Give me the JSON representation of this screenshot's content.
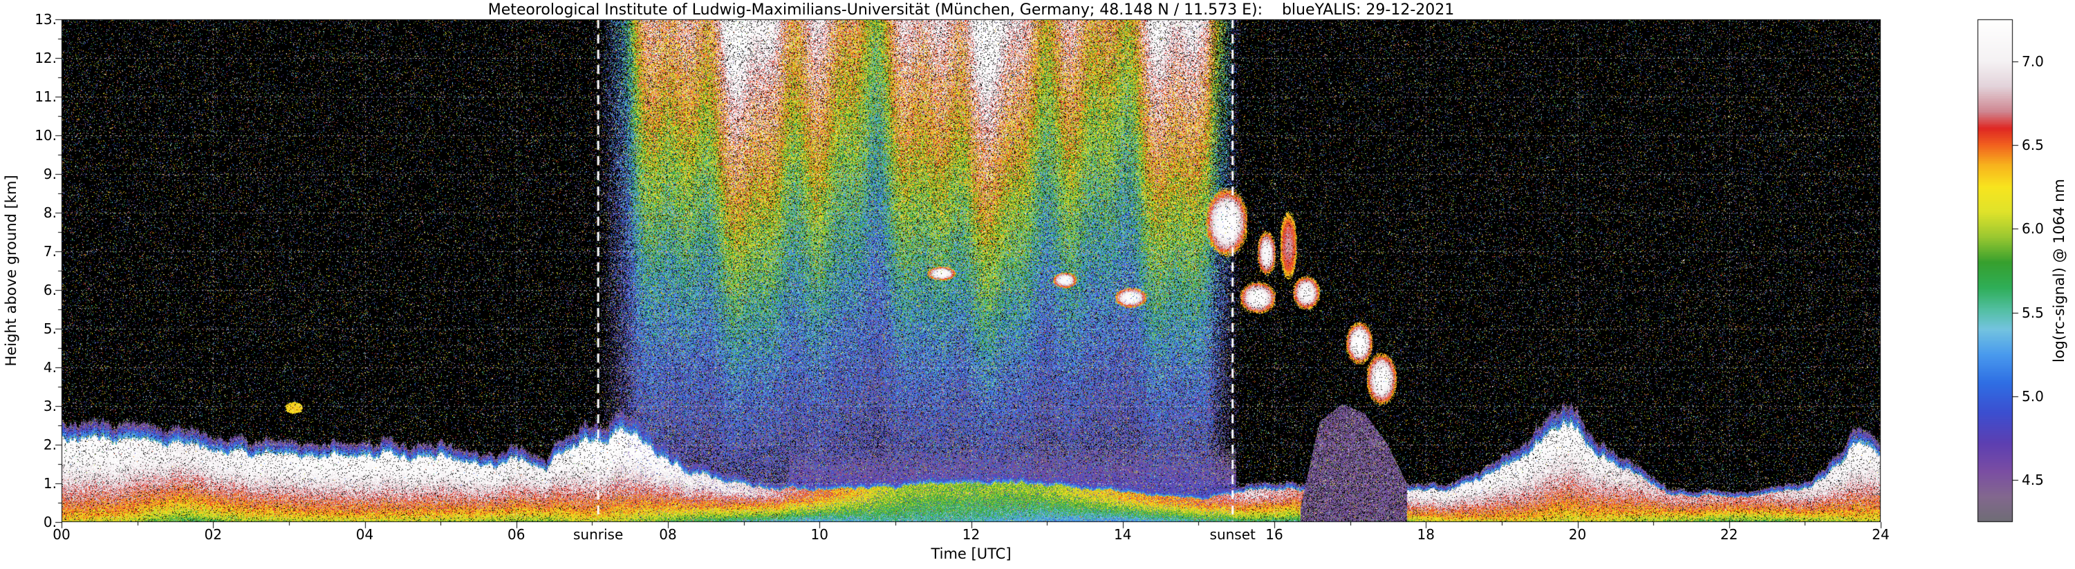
{
  "title": "Meteorological Institute of Ludwig-Maximilians-Universität (München, Germany; 48.148 N / 11.573 E):    blueYALIS: 29-12-2021",
  "axes": {
    "x": {
      "label": "Time [UTC]",
      "ticks": [
        "00",
        "02",
        "04",
        "06",
        "08",
        "10",
        "12",
        "14",
        "16",
        "18",
        "20",
        "22",
        "24"
      ],
      "tick_values": [
        0,
        2,
        4,
        6,
        8,
        10,
        12,
        14,
        16,
        18,
        20,
        22,
        24
      ],
      "minor_step": 1
    },
    "y": {
      "label": "Height above ground [km]",
      "ticks": [
        "0.",
        "1.",
        "2.",
        "3.",
        "4.",
        "5.",
        "6.",
        "7.",
        "8.",
        "9.",
        "10.",
        "11.",
        "12.",
        "13."
      ],
      "tick_values": [
        0,
        1,
        2,
        3,
        4,
        5,
        6,
        7,
        8,
        9,
        10,
        11,
        12,
        13
      ],
      "minor_step": 0.5
    }
  },
  "sun": {
    "sunrise_label": "sunrise",
    "sunset_label": "sunset",
    "sunrise_utc": 7.08,
    "sunset_utc": 15.45
  },
  "colorbar": {
    "label": "log(rc-signal) @ 1064 nm",
    "ticks": [
      "4.5",
      "5.0",
      "5.5",
      "6.0",
      "6.5",
      "7.0"
    ],
    "tick_values": [
      4.5,
      5.0,
      5.5,
      6.0,
      6.5,
      7.0
    ]
  },
  "chart_data": {
    "type": "heatmap",
    "title": "Meteorological Institute of Ludwig-Maximilians-Universität (München, Germany; 48.148 N / 11.573 E):    blueYALIS: 29-12-2021",
    "instrument": "blueYALIS",
    "date": "29-12-2021",
    "xlabel": "Time [UTC]",
    "ylabel": "Height above ground [km]",
    "colorbar_label": "log(rc-signal) @ 1064 nm",
    "xlim": [
      0,
      24
    ],
    "ylim": [
      0,
      13
    ],
    "value_range": [
      4.25,
      7.25
    ],
    "grid": {
      "x_step_hours": 2,
      "y_step_km": 1,
      "style": "dotted",
      "color": "#ffffff"
    },
    "sunrise_utc": 7.08,
    "sunset_utc": 15.45,
    "colormap": [
      [
        4.25,
        "#6f6d76"
      ],
      [
        4.4,
        "#83688f"
      ],
      [
        4.55,
        "#7b4ea3"
      ],
      [
        4.72,
        "#5d3fb2"
      ],
      [
        4.9,
        "#3c4fd0"
      ],
      [
        5.08,
        "#2f6fe4"
      ],
      [
        5.25,
        "#4a9bee"
      ],
      [
        5.4,
        "#74c4e0"
      ],
      [
        5.52,
        "#52bfa0"
      ],
      [
        5.65,
        "#2fae57"
      ],
      [
        5.8,
        "#37a02e"
      ],
      [
        5.95,
        "#9ac831"
      ],
      [
        6.1,
        "#e0e32b"
      ],
      [
        6.25,
        "#f8e51f"
      ],
      [
        6.38,
        "#f8b31d"
      ],
      [
        6.5,
        "#f2611f"
      ],
      [
        6.6,
        "#e02823"
      ],
      [
        6.7,
        "#cf8691"
      ],
      [
        6.85,
        "#e3d3da"
      ],
      [
        7.0,
        "#f5f2f4"
      ],
      [
        7.25,
        "#ffffff"
      ]
    ],
    "night_noise": {
      "speckle_density": 0.09,
      "v_min": 4.3,
      "v_span": 2.7
    },
    "day_noise": {
      "density": 0.88,
      "base": 4.35,
      "amplitude": 2.5,
      "height_exponent": 1.15,
      "jitter": 0.95,
      "white_fleck_prob": 0.07,
      "sunrise_ramp_hours": 0.5,
      "sunset_ramp_hours": 0.45
    },
    "aerosol_layer": {
      "comment": "columns: [time_utc, layer_top_km, peak_log_signal, surface_log_signal]",
      "points": [
        [
          0.0,
          2.25,
          7.25,
          6.1
        ],
        [
          0.8,
          2.1,
          7.25,
          6.0
        ],
        [
          1.6,
          2.0,
          7.1,
          5.6
        ],
        [
          2.5,
          1.75,
          7.2,
          5.9
        ],
        [
          4.0,
          1.7,
          7.25,
          6.0
        ],
        [
          5.5,
          1.55,
          7.2,
          5.9
        ],
        [
          6.4,
          1.5,
          7.1,
          5.8
        ],
        [
          6.9,
          2.1,
          7.3,
          6.0
        ],
        [
          7.5,
          2.3,
          7.3,
          5.9
        ],
        [
          8.2,
          1.3,
          7.1,
          5.6
        ],
        [
          9.0,
          0.95,
          7.0,
          5.3
        ],
        [
          10.0,
          0.8,
          6.5,
          5.1
        ],
        [
          11.0,
          0.9,
          6.0,
          5.4
        ],
        [
          12.0,
          1.0,
          5.9,
          5.4
        ],
        [
          13.0,
          0.95,
          6.0,
          5.1
        ],
        [
          14.0,
          0.75,
          6.3,
          5.0
        ],
        [
          15.0,
          0.6,
          6.5,
          5.3
        ],
        [
          15.7,
          0.85,
          6.9,
          5.5
        ],
        [
          16.4,
          0.9,
          6.7,
          5.4
        ],
        [
          17.3,
          0.8,
          7.0,
          5.7
        ],
        [
          18.3,
          0.8,
          7.1,
          6.0
        ],
        [
          19.2,
          1.5,
          7.2,
          6.1
        ],
        [
          19.8,
          2.7,
          7.25,
          6.0
        ],
        [
          20.4,
          1.6,
          7.1,
          6.0
        ],
        [
          21.2,
          0.75,
          6.8,
          5.8
        ],
        [
          22.2,
          0.65,
          6.7,
          5.6
        ],
        [
          23.1,
          0.9,
          7.0,
          5.8
        ],
        [
          23.7,
          2.0,
          7.25,
          6.0
        ],
        [
          24.0,
          1.7,
          7.1,
          6.0
        ]
      ]
    },
    "low_haze": {
      "t0": 9.6,
      "t1": 15.5,
      "h_top_km": 1.9,
      "v_surface": 5.15,
      "lapse_per_km": 0.5
    },
    "clouds": {
      "comment": "columns: [t0, t1, base_km, top_km, core_log_signal]",
      "items": [
        [
          2.95,
          3.18,
          2.8,
          3.1,
          6.3
        ],
        [
          11.42,
          11.8,
          6.25,
          6.6,
          7.25
        ],
        [
          13.08,
          13.4,
          6.05,
          6.45,
          7.2
        ],
        [
          13.9,
          14.32,
          5.55,
          6.05,
          7.25
        ],
        [
          15.1,
          15.65,
          6.9,
          8.6,
          7.3
        ],
        [
          15.55,
          16.02,
          5.4,
          6.2,
          7.25
        ],
        [
          15.78,
          16.02,
          6.4,
          7.5,
          7.15
        ],
        [
          16.08,
          16.3,
          6.3,
          8.0,
          6.75
        ],
        [
          16.25,
          16.6,
          5.5,
          6.35,
          7.2
        ],
        [
          16.95,
          17.3,
          4.1,
          5.15,
          7.3
        ],
        [
          17.22,
          17.62,
          3.05,
          4.35,
          7.25
        ]
      ]
    },
    "smoke_plume": {
      "t0": 16.35,
      "t1": 17.75,
      "top_profile": [
        [
          16.35,
          0.4
        ],
        [
          16.6,
          2.6
        ],
        [
          16.9,
          3.05
        ],
        [
          17.2,
          2.8
        ],
        [
          17.5,
          2.0
        ],
        [
          17.75,
          1.0
        ]
      ],
      "v_base": 4.28,
      "v_spread": 0.4,
      "fleck_prob": 0.08
    }
  }
}
